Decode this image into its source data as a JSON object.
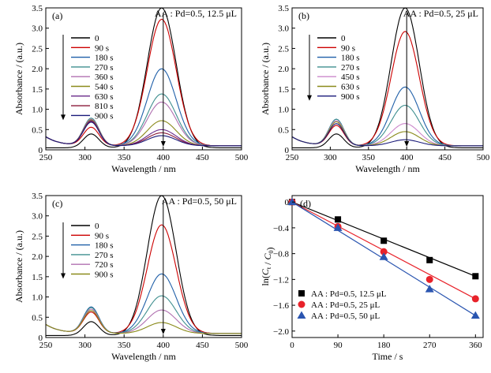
{
  "colors": {
    "t0": "#000000",
    "t90": "#cc0000",
    "t180": "#1f5fa8",
    "t270": "#3f8f8f",
    "t360": "#b070b0",
    "t540": "#8a8a1a",
    "t630": "#6a2a8a",
    "t810": "#8b1a3a",
    "t900": "#1a1a7a",
    "t450": "#cc88cc",
    "t630b": "#8a8a1a",
    "t720": "#b070b0",
    "k1": "#000000",
    "k2": "#e8222a",
    "k3": "#2a55b0"
  },
  "chart_data": [
    {
      "panel": "(a)",
      "type": "line",
      "title": "AA : Pd=0.5, 12.5 μL",
      "xlabel": "Wavelength / nm",
      "ylabel": "Absorbance / (a.u.)",
      "xlim": [
        250,
        500
      ],
      "ylim": [
        0,
        3.5
      ],
      "xticks": [
        250,
        300,
        350,
        400,
        450,
        500
      ],
      "yticks": [
        0,
        0.5,
        1.0,
        1.5,
        2.0,
        2.5,
        3.0,
        3.5
      ],
      "legend_position": "upper-left",
      "series": [
        {
          "name": "0",
          "color_key": "t0",
          "peak400": 3.45,
          "peak310": 0.38
        },
        {
          "name": "90 s",
          "color_key": "t90",
          "peak400": 3.12,
          "peak310": 0.5
        },
        {
          "name": "180 s",
          "color_key": "t180",
          "peak400": 1.9,
          "peak310": 0.7
        },
        {
          "name": "270 s",
          "color_key": "t270",
          "peak400": 1.28,
          "peak310": 0.75
        },
        {
          "name": "360 s",
          "color_key": "t360",
          "peak400": 1.08,
          "peak310": 0.72
        },
        {
          "name": "540 s",
          "color_key": "t540",
          "peak400": 0.62,
          "peak310": 0.7
        },
        {
          "name": "630 s",
          "color_key": "t630",
          "peak400": 0.4,
          "peak310": 0.68
        },
        {
          "name": "810 s",
          "color_key": "t810",
          "peak400": 0.32,
          "peak310": 0.66
        },
        {
          "name": "900 s",
          "color_key": "t900",
          "peak400": 0.25,
          "peak310": 0.64
        }
      ]
    },
    {
      "panel": "(b)",
      "type": "line",
      "title": "AA : Pd=0.5, 25 μL",
      "xlabel": "Wavelength / nm",
      "ylabel": "Absorbance / (a.u.)",
      "xlim": [
        250,
        500
      ],
      "ylim": [
        0,
        3.5
      ],
      "xticks": [
        250,
        300,
        350,
        400,
        450,
        500
      ],
      "yticks": [
        0,
        0.5,
        1.0,
        1.5,
        2.0,
        2.5,
        3.0,
        3.5
      ],
      "legend_position": "upper-left",
      "series": [
        {
          "name": "0",
          "color_key": "t0",
          "peak400": 3.45,
          "peak310": 0.38
        },
        {
          "name": "90 s",
          "color_key": "t90",
          "peak400": 2.82,
          "peak310": 0.55
        },
        {
          "name": "180 s",
          "color_key": "t180",
          "peak400": 1.45,
          "peak310": 0.72
        },
        {
          "name": "270 s",
          "color_key": "t270",
          "peak400": 1.0,
          "peak310": 0.72
        },
        {
          "name": "450 s",
          "color_key": "t450",
          "peak400": 0.55,
          "peak310": 0.68
        },
        {
          "name": "630 s",
          "color_key": "t630b",
          "peak400": 0.35,
          "peak310": 0.65
        },
        {
          "name": "900 s",
          "color_key": "t900",
          "peak400": 0.15,
          "peak310": 0.6
        }
      ]
    },
    {
      "panel": "(c)",
      "type": "line",
      "title": "AA : Pd=0.5, 50 μL",
      "xlabel": "Wavelength / nm",
      "ylabel": "Absorbance / (a.u.)",
      "xlim": [
        250,
        500
      ],
      "ylim": [
        0,
        3.5
      ],
      "xticks": [
        250,
        300,
        350,
        400,
        450,
        500
      ],
      "yticks": [
        0,
        0.5,
        1.0,
        1.5,
        2.0,
        2.5,
        3.0,
        3.5
      ],
      "legend_position": "upper-left",
      "series": [
        {
          "name": "0",
          "color_key": "t0",
          "peak400": 3.45,
          "peak310": 0.38
        },
        {
          "name": "90 s",
          "color_key": "t90",
          "peak400": 2.68,
          "peak310": 0.58
        },
        {
          "name": "180 s",
          "color_key": "t180",
          "peak400": 1.47,
          "peak310": 0.72
        },
        {
          "name": "270 s",
          "color_key": "t270",
          "peak400": 0.93,
          "peak310": 0.7
        },
        {
          "name": "720 s",
          "color_key": "t720",
          "peak400": 0.58,
          "peak310": 0.66
        },
        {
          "name": "900 s",
          "color_key": "t540",
          "peak400": 0.27,
          "peak310": 0.62
        }
      ]
    },
    {
      "panel": "(d)",
      "type": "scatter",
      "xlabel": "Time / s",
      "ylabel": "ln(C_t / C_0)",
      "xlim": [
        0,
        375
      ],
      "ylim": [
        -2.1,
        0.1
      ],
      "xticks": [
        0,
        90,
        180,
        270,
        360
      ],
      "yticks": [
        0,
        -0.4,
        -0.8,
        -1.2,
        -1.6,
        -2.0
      ],
      "ytick_labels": [
        "0",
        "−0.4",
        "−0.8",
        "−1.2",
        "−1.6",
        "−2.0"
      ],
      "legend_position": "lower-left",
      "series": [
        {
          "name": "AA : Pd=0.5, 12.5 μL",
          "marker": "square",
          "color_key": "k1",
          "x": [
            0,
            90,
            180,
            270,
            360
          ],
          "y": [
            0,
            -0.27,
            -0.6,
            -0.9,
            -1.15
          ]
        },
        {
          "name": "AA : Pd=0.5, 25 μL",
          "marker": "circle",
          "color_key": "k2",
          "x": [
            0,
            90,
            180,
            270,
            360
          ],
          "y": [
            0,
            -0.38,
            -0.77,
            -1.2,
            -1.5
          ]
        },
        {
          "name": "AA : Pd=0.5, 50 μL",
          "marker": "triangle",
          "color_key": "k3",
          "x": [
            0,
            90,
            180,
            270,
            360
          ],
          "y": [
            0,
            -0.4,
            -0.85,
            -1.35,
            -1.76
          ]
        }
      ]
    }
  ]
}
